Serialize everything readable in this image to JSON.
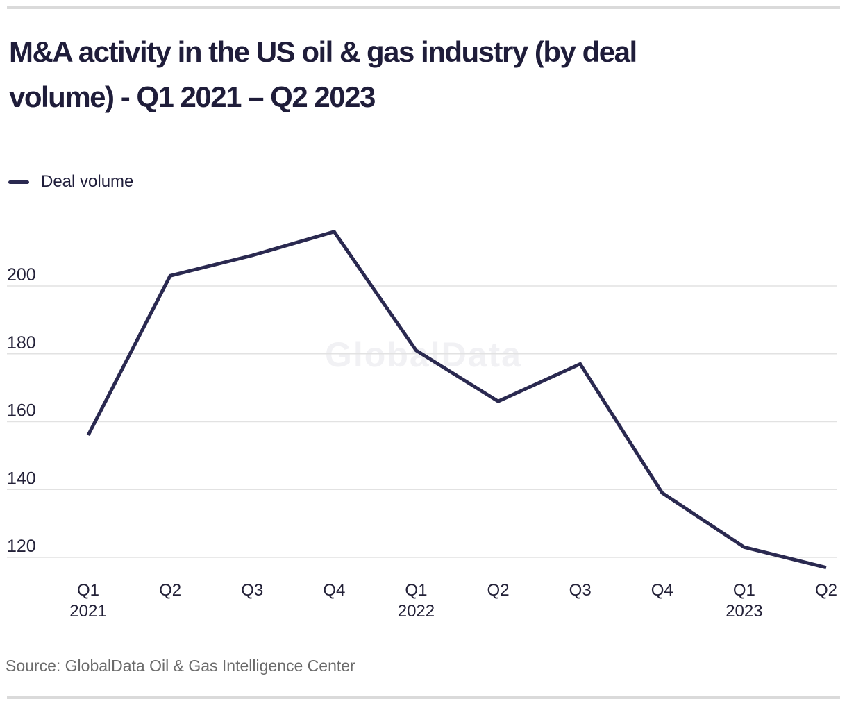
{
  "page": {
    "title_line1": "M&A activity in the US oil & gas industry (by deal",
    "title_line2": "volume) - Q1 2021 – Q2 2023",
    "source": "Source: GlobalData Oil & Gas Intelligence Center",
    "watermark": "GlobalData"
  },
  "legend": {
    "label": "Deal volume"
  },
  "chart_data": {
    "type": "line",
    "title": "M&A activity in the US oil & gas industry (by deal volume) - Q1 2021 – Q2 2023",
    "categories": [
      "Q1 2021",
      "Q2 2021",
      "Q3 2021",
      "Q4 2021",
      "Q1 2022",
      "Q2 2022",
      "Q3 2022",
      "Q4 2022",
      "Q1 2023",
      "Q2 2023"
    ],
    "series": [
      {
        "name": "Deal volume",
        "values": [
          156,
          203,
          209,
          216,
          181,
          166,
          177,
          139,
          123,
          117
        ]
      }
    ],
    "x_tick_labels": [
      "Q1",
      "Q2",
      "Q3",
      "Q4",
      "Q1",
      "Q2",
      "Q3",
      "Q4",
      "Q1",
      "Q2"
    ],
    "x_year_labels": [
      {
        "index": 0,
        "label": "2021"
      },
      {
        "index": 4,
        "label": "2022"
      },
      {
        "index": 8,
        "label": "2023"
      }
    ],
    "y_ticks": [
      120,
      140,
      160,
      180,
      200
    ],
    "ylim": [
      112,
      220
    ],
    "xlabel": "",
    "ylabel": "",
    "grid": "horizontal",
    "legend_position": "top-left",
    "line_color": "#2a2950",
    "watermark": "GlobalData",
    "source": "Source: GlobalData Oil & Gas Intelligence Center"
  }
}
